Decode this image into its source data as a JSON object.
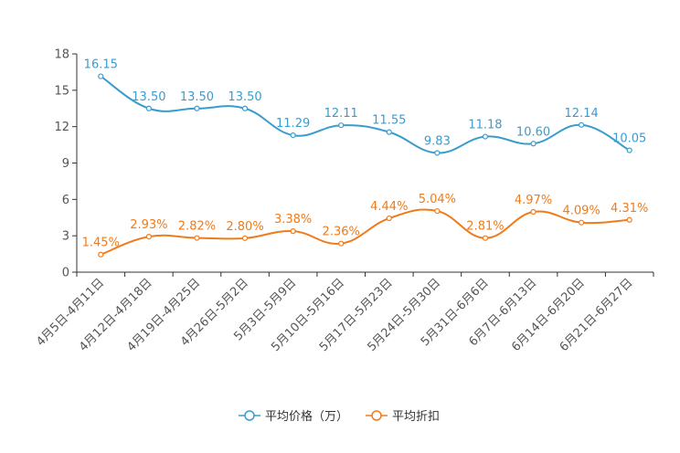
{
  "chart_data": {
    "type": "line",
    "categories": [
      "4月5日-4月11日",
      "4月12日-4月18日",
      "4月19日-4月25日",
      "4月26日-5月2日",
      "5月3日-5月9日",
      "5月10日-5月16日",
      "5月17日-5月23日",
      "5月24日-5月30日",
      "5月31日-6月6日",
      "6月7日-6月13日",
      "6月14日-6月20日",
      "6月21日-6月27日"
    ],
    "series": [
      {
        "name": "平均价格（万）",
        "color": "#3a9ccd",
        "values": [
          16.15,
          13.5,
          13.5,
          13.5,
          11.29,
          12.11,
          11.55,
          9.83,
          11.18,
          10.6,
          12.14,
          10.05
        ],
        "labels": [
          "16.15",
          "13.50",
          "13.50",
          "13.50",
          "11.29",
          "12.11",
          "11.55",
          "9.83",
          "11.18",
          "10.60",
          "12.14",
          "10.05"
        ]
      },
      {
        "name": "平均折扣",
        "color": "#f07b1a",
        "values": [
          1.45,
          2.93,
          2.82,
          2.8,
          3.38,
          2.36,
          4.44,
          5.04,
          2.81,
          4.97,
          4.09,
          4.31
        ],
        "labels": [
          "1.45%",
          "2.93%",
          "2.82%",
          "2.80%",
          "3.38%",
          "2.36%",
          "4.44%",
          "5.04%",
          "2.81%",
          "4.97%",
          "4.09%",
          "4.31%"
        ]
      }
    ],
    "yticks": [
      "0",
      "3",
      "6",
      "9",
      "12",
      "15",
      "18"
    ],
    "ylim": [
      0,
      18
    ],
    "legend_position": "bottom-center",
    "grid": false
  }
}
